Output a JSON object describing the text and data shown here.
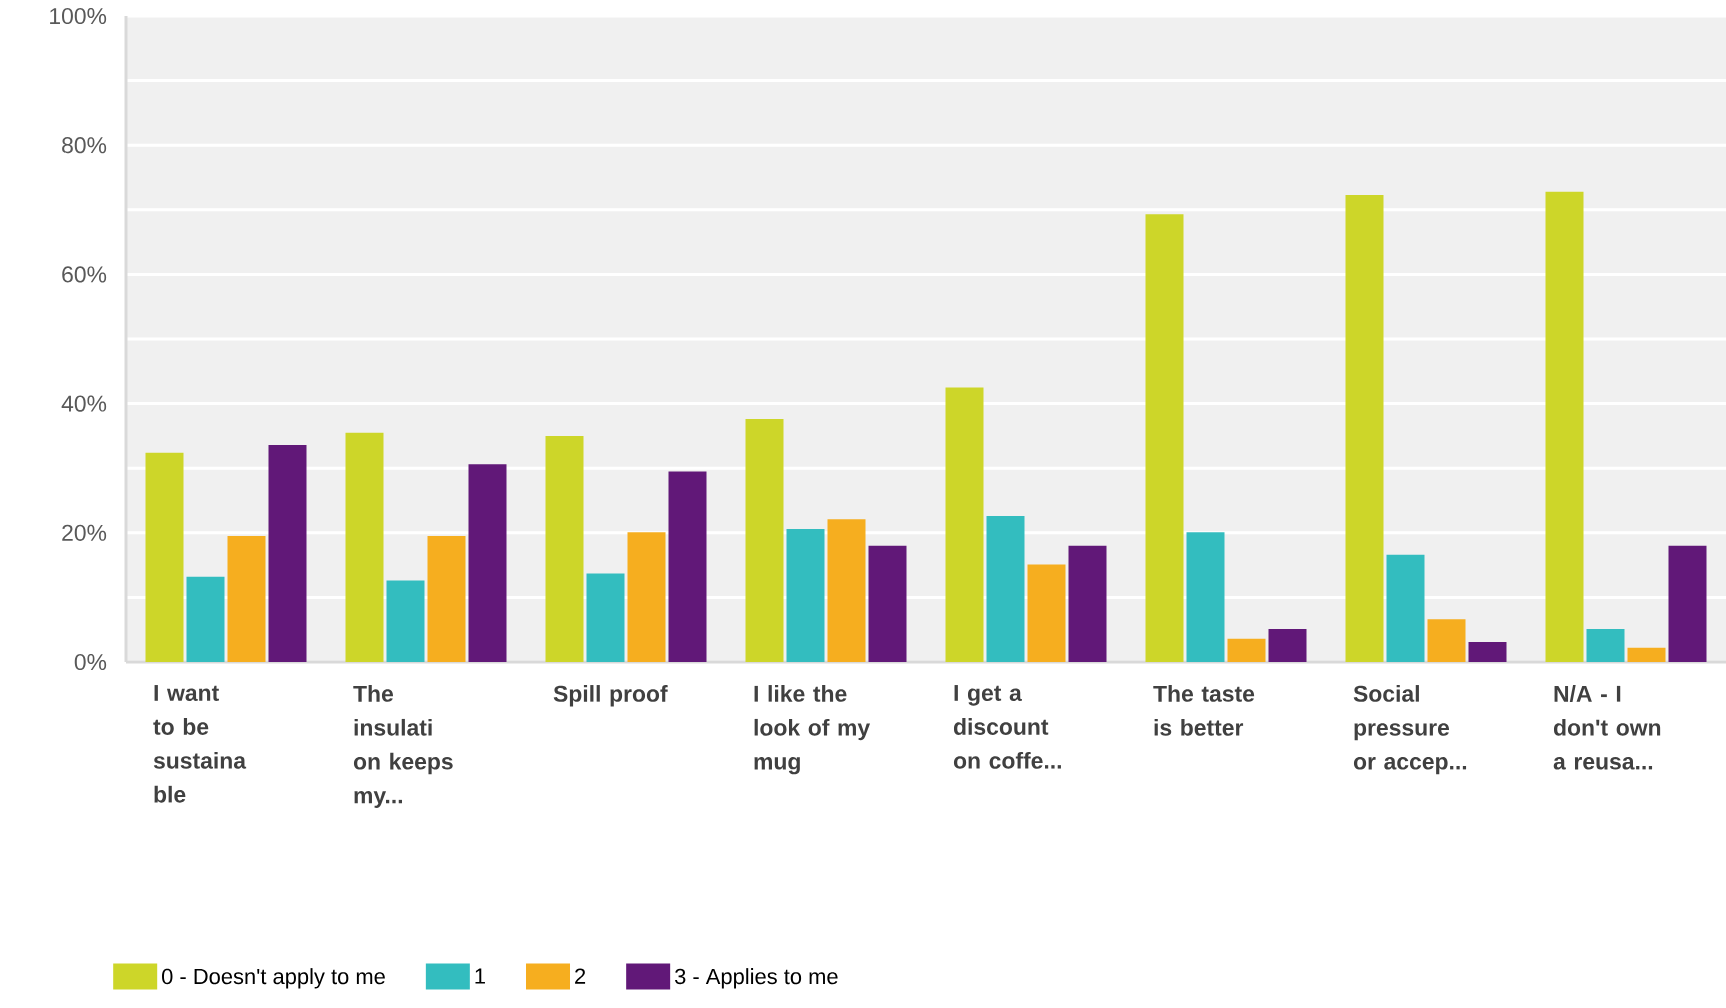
{
  "chart_data": {
    "type": "bar",
    "categories": [
      "I want to be sustaina ble",
      "The insulati on keeps my...",
      "Spill proof",
      "I like the look of my mug",
      "I get a discount on coffe...",
      "The taste is better",
      "Social pressure or accep...",
      "N/A - I don't own a reusa..."
    ],
    "series": [
      {
        "name": "0 - Doesn't apply to me",
        "color": "#cdd629",
        "values": [
          32.4,
          35.5,
          35,
          37.6,
          42.5,
          69.3,
          72.3,
          72.8
        ]
      },
      {
        "name": "1",
        "color": "#33bdbf",
        "values": [
          13.2,
          12.6,
          13.7,
          20.6,
          22.6,
          20.1,
          16.6,
          5.1
        ]
      },
      {
        "name": "2",
        "color": "#f6ae1f",
        "values": [
          19.5,
          19.5,
          20.1,
          22.1,
          15.1,
          3.6,
          6.6,
          2.2
        ]
      },
      {
        "name": "3 - Applies to me",
        "color": "#611878",
        "values": [
          33.6,
          30.6,
          29.5,
          18,
          18,
          5.1,
          3.1,
          18
        ]
      }
    ],
    "ylim": [
      0,
      100
    ],
    "yticks": [
      {
        "value": 0,
        "label": "0%"
      },
      {
        "value": 10,
        "label": null
      },
      {
        "value": 20,
        "label": "20%"
      },
      {
        "value": 30,
        "label": null
      },
      {
        "value": 40,
        "label": "40%"
      },
      {
        "value": 50,
        "label": null
      },
      {
        "value": 60,
        "label": "60%"
      },
      {
        "value": 70,
        "label": null
      },
      {
        "value": 80,
        "label": "80%"
      },
      {
        "value": 90,
        "label": null
      },
      {
        "value": 100,
        "label": "100%"
      }
    ],
    "grid": "y",
    "legend": "bottom"
  }
}
